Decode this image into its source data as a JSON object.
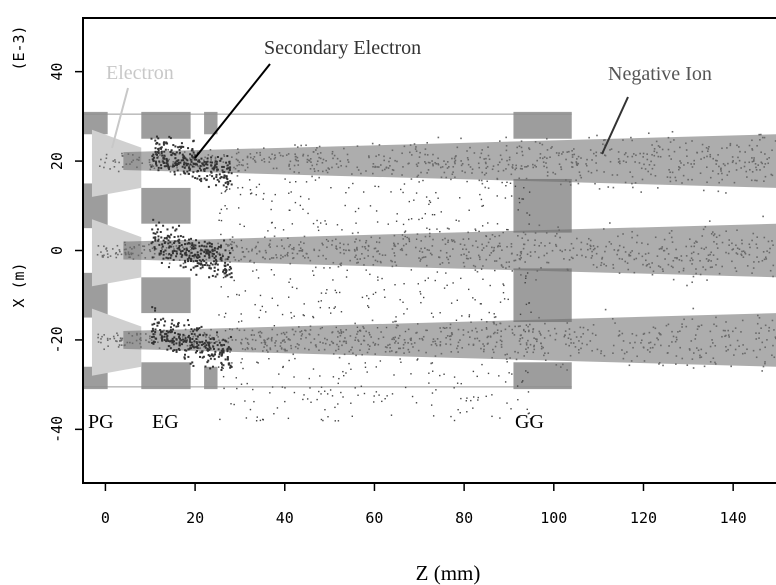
{
  "chart_data": {
    "type": "scatter",
    "xlabel": "Z (mm)",
    "ylabel": "X (m)",
    "yscale_label": "(E-3)",
    "x_ticks": [
      0,
      20,
      40,
      60,
      80,
      100,
      120,
      140
    ],
    "y_ticks": [
      40,
      20,
      0,
      -20,
      -40
    ],
    "xlim": [
      -5,
      150
    ],
    "ylim": [
      -52,
      52
    ],
    "grid": false,
    "legend": "none",
    "colors": {
      "electron": "#d0d0d0",
      "secondary_electron": "#333333",
      "negative_ion": "#6a6a6a",
      "grid_electrode": "#8c8c8c"
    },
    "annotations": {
      "electron": "Electron",
      "secondary_electron": "Secondary Electron",
      "negative_ion": "Negative Ion",
      "pg": "PG",
      "eg": "EG",
      "gg": "GG"
    },
    "beamlets_center_x_mm": [
      20,
      0,
      -20
    ],
    "electrodes": [
      {
        "name": "PG",
        "z_mm": [
          -5,
          0
        ]
      },
      {
        "name": "EG",
        "z_mm": [
          8,
          22
        ]
      },
      {
        "name": "GG",
        "z_mm": [
          91,
          104
        ]
      }
    ]
  }
}
